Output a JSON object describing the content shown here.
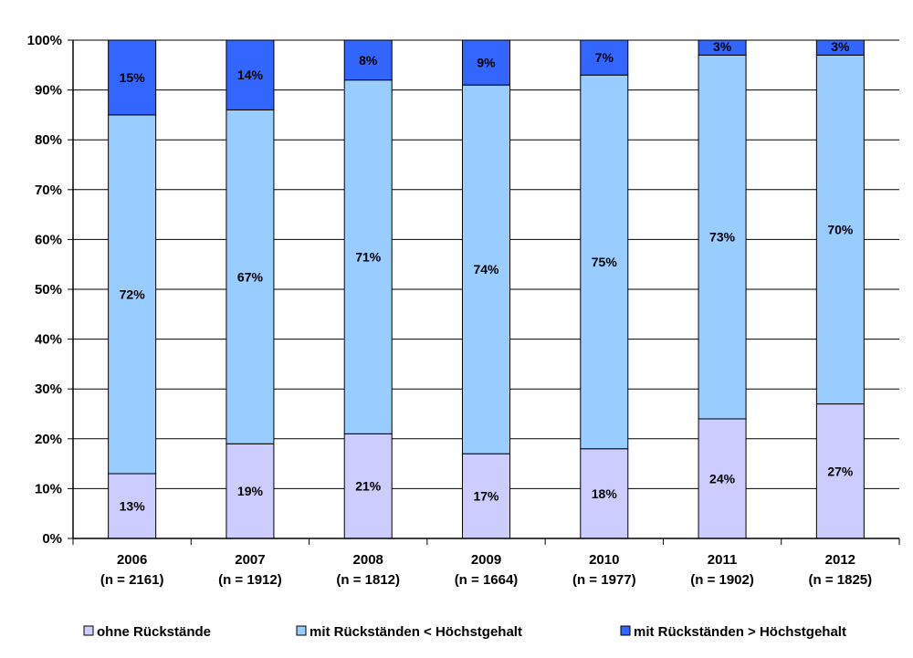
{
  "chart_data": {
    "type": "bar",
    "stacked": true,
    "percent": true,
    "title": "",
    "xlabel": "",
    "ylabel": "",
    "ylim": [
      0,
      100
    ],
    "yticks": [
      "0%",
      "10%",
      "20%",
      "30%",
      "40%",
      "50%",
      "60%",
      "70%",
      "80%",
      "90%",
      "100%"
    ],
    "grid": "horizontal",
    "legend_position": "bottom",
    "categories": [
      "2006",
      "2007",
      "2008",
      "2009",
      "2010",
      "2011",
      "2012"
    ],
    "category_sublabels": [
      "(n = 2161)",
      "(n = 1912)",
      "(n = 1812)",
      "(n = 1664)",
      "(n = 1977)",
      "(n = 1902)",
      "(n = 1825)"
    ],
    "series": [
      {
        "name": "ohne Rückstände",
        "color": "#ccccff",
        "values": [
          13,
          19,
          21,
          17,
          18,
          24,
          27
        ],
        "labels": [
          "13%",
          "19%",
          "21%",
          "17%",
          "18%",
          "24%",
          "27%"
        ]
      },
      {
        "name": "mit Rückständen < Höchstgehalt",
        "color": "#99ccff",
        "values": [
          72,
          67,
          71,
          74,
          75,
          73,
          70
        ],
        "labels": [
          "72%",
          "67%",
          "71%",
          "74%",
          "75%",
          "73%",
          "70%"
        ]
      },
      {
        "name": "mit Rückständen > Höchstgehalt",
        "color": "#3366ff",
        "values": [
          15,
          14,
          8,
          9,
          7,
          3,
          3
        ],
        "labels": [
          "15%",
          "14%",
          "8%",
          "9%",
          "7%",
          "3%",
          "3%"
        ]
      }
    ]
  }
}
